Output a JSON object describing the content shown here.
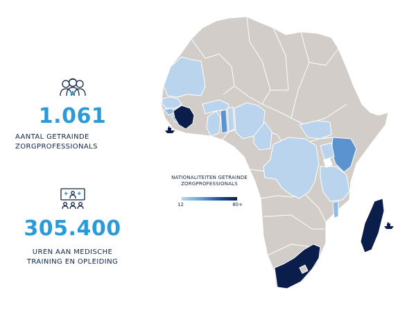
{
  "stats": [
    {
      "number": "1.061",
      "label_line1": "AANTAL GETRAINDE",
      "label_line2": "ZORGPROFESSIONALS",
      "icon": "healthcare-team-icon"
    },
    {
      "number": "305.400",
      "label_line1": "UREN  AAN MEDISCHE",
      "label_line2": "TRAINING EN OPLEIDING",
      "icon": "medical-training-icon"
    }
  ],
  "legend": {
    "title_line1": "NATIONALITEITEN GETRAINDE",
    "title_line2": "ZORGPROFESSIONALS",
    "min": "12",
    "max": "80+"
  },
  "colors": {
    "land": "#d3cdc9",
    "border": "#ffffff",
    "light": "#b9d4ec",
    "medium": "#8fbbe3",
    "mid_dark": "#5a93cf",
    "dark": "#0b1e4b",
    "accent_number": "#2a9bd8",
    "text": "#0f2245"
  },
  "map_markers": [
    "ship-icon",
    "ship-icon"
  ]
}
